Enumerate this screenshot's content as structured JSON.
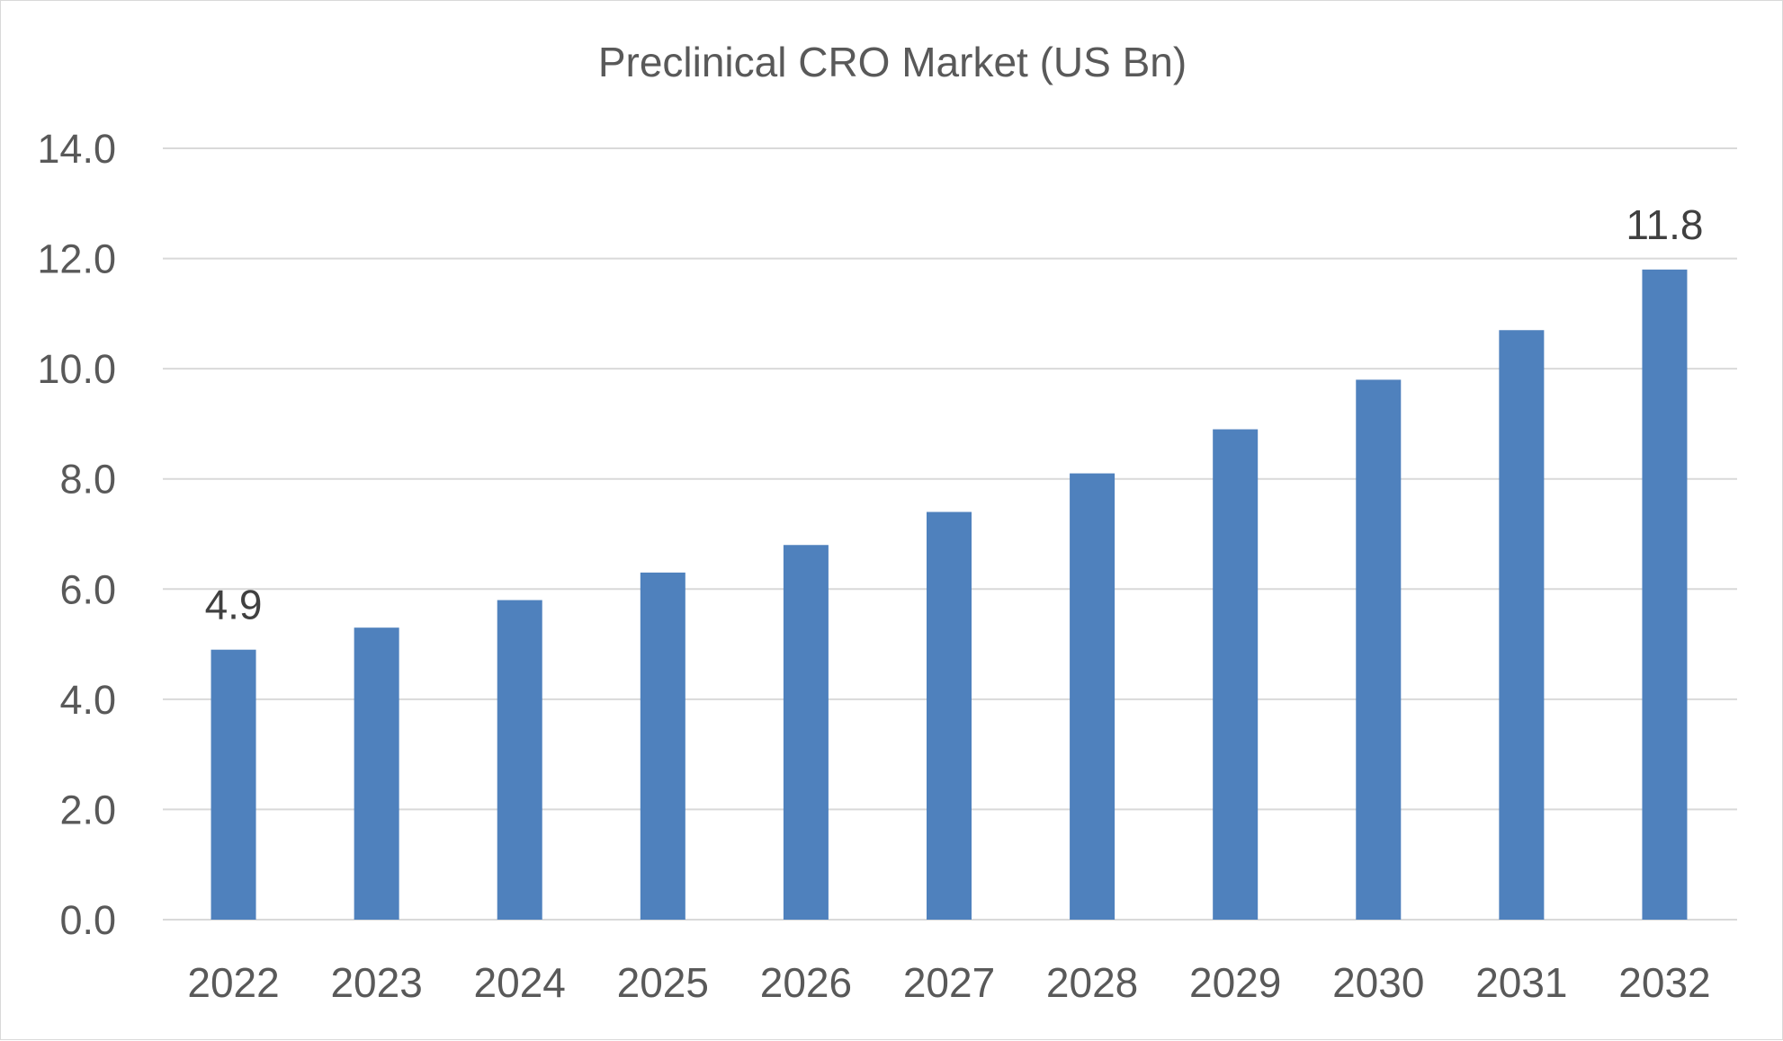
{
  "chart_data": {
    "type": "bar",
    "title": "Preclinical CRO Market (US Bn)",
    "xlabel": "",
    "ylabel": "",
    "categories": [
      "2022",
      "2023",
      "2024",
      "2025",
      "2026",
      "2027",
      "2028",
      "2029",
      "2030",
      "2031",
      "2032"
    ],
    "values": [
      4.9,
      5.3,
      5.8,
      6.3,
      6.8,
      7.4,
      8.1,
      8.9,
      9.8,
      10.7,
      11.8
    ],
    "ylim": [
      0,
      14
    ],
    "yticks": [
      "0.0",
      "2.0",
      "4.0",
      "6.0",
      "8.0",
      "10.0",
      "12.0",
      "14.0"
    ],
    "data_labels": [
      {
        "category": "2022",
        "text": "4.9"
      },
      {
        "category": "2032",
        "text": "11.8"
      }
    ],
    "bar_color": "#4f81bd",
    "grid": true,
    "legend": "none"
  }
}
